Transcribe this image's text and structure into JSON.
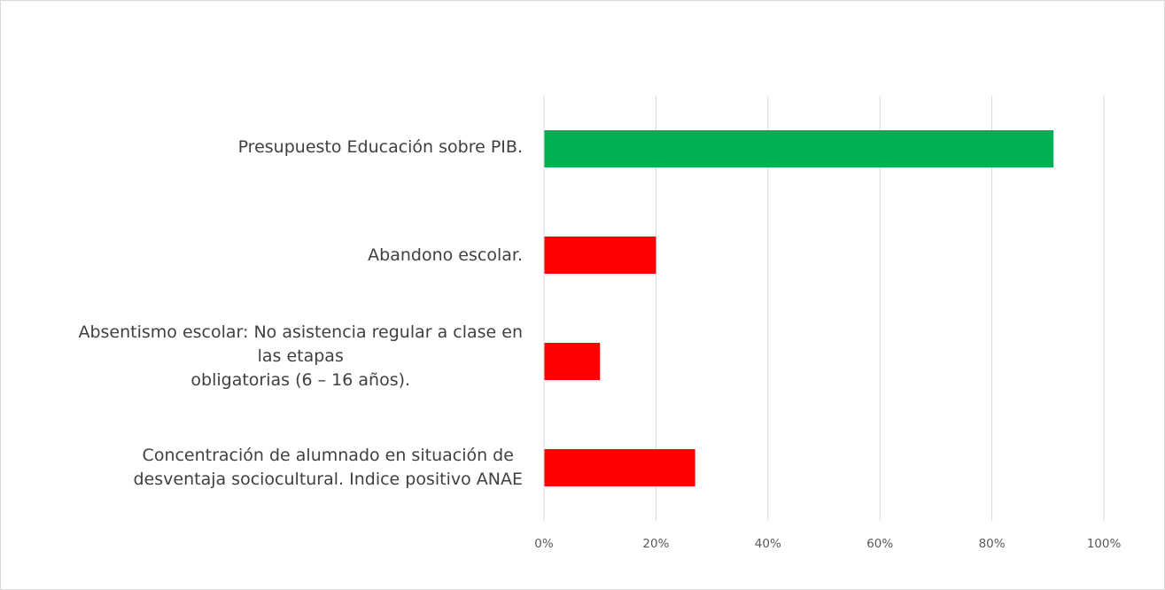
{
  "chart_data": {
    "type": "bar",
    "orientation": "horizontal",
    "categories": [
      [
        "Presupuesto Educación sobre PIB."
      ],
      [
        "Abandono escolar."
      ],
      [
        "Absentismo escolar: No asistencia regular a clase en",
        "las etapas",
        "obligatorias (6 – 16 años)."
      ],
      [
        "Concentración de alumnado en situación de",
        "desventaja sociocultural. Indice positivo ANAE"
      ]
    ],
    "values": [
      0.91,
      0.2,
      0.1,
      0.27
    ],
    "bar_colors": [
      "#00b050",
      "#ff0000",
      "#ff0000",
      "#ff0000"
    ],
    "xlim": [
      0,
      1
    ],
    "x_ticks": [
      0,
      0.2,
      0.4,
      0.6,
      0.8,
      1.0
    ],
    "x_tick_labels": [
      "0%",
      "20%",
      "40%",
      "60%",
      "80%",
      "100%"
    ],
    "grid": true,
    "title": "",
    "xlabel": "",
    "ylabel": ""
  }
}
